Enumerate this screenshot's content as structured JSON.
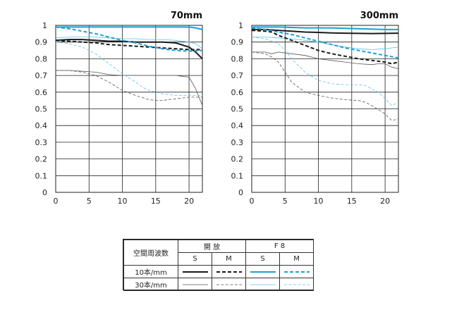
{
  "colors": {
    "black": "#1a1a1a",
    "cyan": "#1e9fd6",
    "gray": "#555555",
    "light_cyan": "#5ec0e6",
    "grid": "#222222"
  },
  "chart_data": [
    {
      "type": "line",
      "title": "70mm",
      "xlim": [
        0,
        22
      ],
      "ylim": [
        0,
        1
      ],
      "x_ticks": [
        "0",
        "5",
        "10",
        "15",
        "20"
      ],
      "y_ticks": [
        "0",
        "0.1",
        "0.2",
        "0.3",
        "0.4",
        "0.5",
        "0.6",
        "0.7",
        "0.8",
        "0.9",
        "1"
      ],
      "grid": true,
      "series": [
        {
          "aperture": "open",
          "freq": "10",
          "dir": "S",
          "x": [
            0,
            2,
            4,
            6,
            8,
            10,
            12,
            14,
            16,
            18,
            20,
            21,
            22
          ],
          "y": [
            0.91,
            0.915,
            0.915,
            0.91,
            0.905,
            0.905,
            0.9,
            0.9,
            0.9,
            0.895,
            0.87,
            0.84,
            0.8
          ]
        },
        {
          "aperture": "open",
          "freq": "10",
          "dir": "M",
          "x": [
            0,
            2,
            4,
            6,
            8,
            10,
            12,
            14,
            16,
            18,
            20,
            22
          ],
          "y": [
            0.91,
            0.905,
            0.9,
            0.895,
            0.885,
            0.88,
            0.875,
            0.87,
            0.865,
            0.86,
            0.855,
            0.855
          ]
        },
        {
          "aperture": "open",
          "freq": "30",
          "dir": "S",
          "x": [
            0,
            2,
            4,
            6,
            8,
            10,
            12,
            14,
            16,
            18,
            20,
            21,
            22
          ],
          "y": [
            0.73,
            0.73,
            0.725,
            0.72,
            0.705,
            0.7,
            0.7,
            0.7,
            0.7,
            0.7,
            0.69,
            0.62,
            0.52
          ]
        },
        {
          "aperture": "open",
          "freq": "30",
          "dir": "M",
          "x": [
            0,
            2,
            4,
            6,
            8,
            10,
            12,
            14,
            15,
            16,
            18,
            20,
            22
          ],
          "y": [
            0.73,
            0.73,
            0.72,
            0.7,
            0.66,
            0.61,
            0.58,
            0.555,
            0.55,
            0.55,
            0.56,
            0.57,
            0.57
          ]
        },
        {
          "aperture": "F8",
          "freq": "10",
          "dir": "S",
          "x": [
            0,
            4,
            8,
            12,
            16,
            20,
            21,
            22
          ],
          "y": [
            0.99,
            0.99,
            0.99,
            0.99,
            0.99,
            0.99,
            0.985,
            0.975
          ]
        },
        {
          "aperture": "F8",
          "freq": "10",
          "dir": "M",
          "x": [
            0,
            2,
            4,
            6,
            8,
            10,
            12,
            14,
            16,
            18,
            20,
            22
          ],
          "y": [
            0.99,
            0.98,
            0.965,
            0.95,
            0.93,
            0.91,
            0.895,
            0.875,
            0.86,
            0.85,
            0.845,
            0.85
          ]
        },
        {
          "aperture": "F8",
          "freq": "30",
          "dir": "S",
          "x": [
            0,
            2,
            4,
            6,
            8,
            10,
            12,
            14,
            16,
            18,
            20,
            21,
            22
          ],
          "y": [
            0.925,
            0.93,
            0.93,
            0.93,
            0.925,
            0.92,
            0.92,
            0.915,
            0.915,
            0.91,
            0.9,
            0.89,
            0.86
          ]
        },
        {
          "aperture": "F8",
          "freq": "30",
          "dir": "M",
          "x": [
            0,
            2,
            4,
            6,
            8,
            10,
            12,
            13,
            14,
            16,
            18,
            20,
            22
          ],
          "y": [
            0.9,
            0.89,
            0.87,
            0.83,
            0.77,
            0.71,
            0.66,
            0.63,
            0.61,
            0.59,
            0.58,
            0.58,
            0.58
          ]
        }
      ]
    },
    {
      "type": "line",
      "title": "300mm",
      "xlim": [
        0,
        22
      ],
      "ylim": [
        0,
        1
      ],
      "x_ticks": [
        "0",
        "5",
        "10",
        "15",
        "20"
      ],
      "y_ticks": [
        "0",
        "0.1",
        "0.2",
        "0.3",
        "0.4",
        "0.5",
        "0.6",
        "0.7",
        "0.8",
        "0.9",
        "1"
      ],
      "grid": true,
      "series": [
        {
          "aperture": "open",
          "freq": "10",
          "dir": "S",
          "x": [
            0,
            2,
            4,
            6,
            8,
            10,
            12,
            14,
            16,
            18,
            20,
            22
          ],
          "y": [
            0.975,
            0.975,
            0.97,
            0.965,
            0.96,
            0.958,
            0.955,
            0.953,
            0.952,
            0.951,
            0.952,
            0.953
          ]
        },
        {
          "aperture": "open",
          "freq": "10",
          "dir": "M",
          "x": [
            0,
            2,
            3,
            4,
            6,
            8,
            10,
            12,
            14,
            16,
            18,
            20,
            21,
            22
          ],
          "y": [
            0.97,
            0.965,
            0.96,
            0.94,
            0.91,
            0.88,
            0.85,
            0.83,
            0.815,
            0.8,
            0.79,
            0.78,
            0.77,
            0.78
          ]
        },
        {
          "aperture": "open",
          "freq": "30",
          "dir": "S",
          "x": [
            0,
            2,
            3,
            4,
            6,
            8,
            10,
            12,
            14,
            16,
            18,
            19,
            20,
            21,
            22
          ],
          "y": [
            0.84,
            0.84,
            0.83,
            0.84,
            0.83,
            0.82,
            0.8,
            0.79,
            0.78,
            0.77,
            0.765,
            0.77,
            0.77,
            0.75,
            0.74
          ]
        },
        {
          "aperture": "open",
          "freq": "30",
          "dir": "M",
          "x": [
            0,
            2,
            3,
            4,
            5,
            6,
            8,
            10,
            12,
            14,
            16,
            17,
            18,
            20,
            21,
            22
          ],
          "y": [
            0.84,
            0.83,
            0.81,
            0.78,
            0.72,
            0.66,
            0.6,
            0.58,
            0.565,
            0.555,
            0.55,
            0.54,
            0.52,
            0.47,
            0.43,
            0.44
          ]
        },
        {
          "aperture": "F8",
          "freq": "10",
          "dir": "S",
          "x": [
            0,
            4,
            8,
            12,
            16,
            20,
            22
          ],
          "y": [
            0.99,
            0.99,
            0.985,
            0.985,
            0.98,
            0.975,
            0.975
          ]
        },
        {
          "aperture": "F8",
          "freq": "10",
          "dir": "M",
          "x": [
            0,
            2,
            4,
            6,
            8,
            10,
            12,
            14,
            16,
            18,
            20,
            22
          ],
          "y": [
            0.985,
            0.975,
            0.96,
            0.945,
            0.925,
            0.905,
            0.885,
            0.865,
            0.85,
            0.835,
            0.82,
            0.805
          ]
        },
        {
          "aperture": "F8",
          "freq": "30",
          "dir": "S",
          "x": [
            0,
            2,
            4,
            6,
            8,
            10,
            12,
            14,
            16,
            18,
            20,
            21,
            22
          ],
          "y": [
            0.93,
            0.93,
            0.925,
            0.92,
            0.91,
            0.9,
            0.885,
            0.87,
            0.86,
            0.855,
            0.86,
            0.865,
            0.87
          ]
        },
        {
          "aperture": "F8",
          "freq": "30",
          "dir": "M",
          "x": [
            0,
            2,
            4,
            5,
            6,
            8,
            10,
            12,
            14,
            16,
            17,
            18,
            19,
            20,
            21,
            22
          ],
          "y": [
            0.93,
            0.92,
            0.89,
            0.85,
            0.8,
            0.72,
            0.67,
            0.65,
            0.645,
            0.645,
            0.64,
            0.62,
            0.6,
            0.56,
            0.52,
            0.54
          ]
        }
      ]
    }
  ],
  "legend": {
    "header_label": "空間周波数",
    "col_open": "開 放",
    "col_f8": "F 8",
    "sub_s1": "S",
    "sub_m1": "M",
    "sub_s2": "S",
    "sub_m2": "M",
    "row_10": "10本/mm",
    "row_30": "30本/mm"
  }
}
